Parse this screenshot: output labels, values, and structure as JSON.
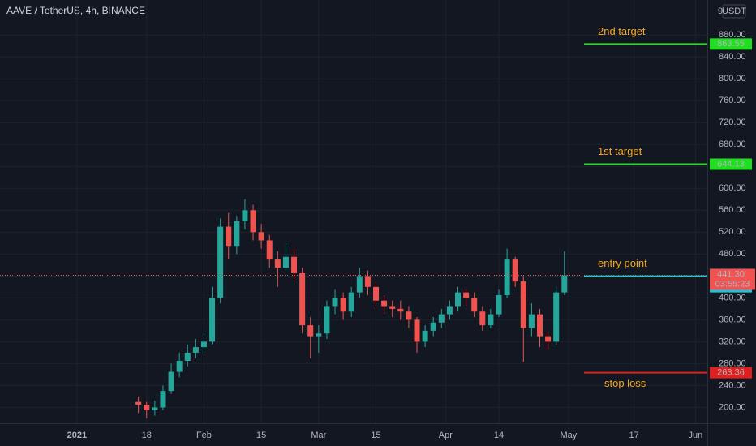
{
  "header": {
    "title": "AAVE / TetherUS, 4h, BINANCE"
  },
  "axis_top": {
    "number": "9",
    "unit": "USDT"
  },
  "chart_data": {
    "type": "candlestick",
    "x": [
      15,
      17,
      19,
      21,
      23,
      25,
      27,
      29,
      31,
      33,
      35,
      37,
      39,
      41,
      43,
      45,
      47,
      49,
      51,
      53,
      55,
      57,
      59,
      61,
      63,
      65,
      67,
      69,
      71,
      73,
      75,
      77,
      79,
      81,
      83,
      85,
      87,
      89,
      91,
      93,
      95,
      97,
      99,
      101,
      103,
      105,
      107,
      109,
      111,
      113,
      115,
      117,
      119
    ],
    "open": [
      210,
      205,
      195,
      200,
      230,
      265,
      285,
      300,
      310,
      320,
      400,
      530,
      495,
      540,
      560,
      520,
      505,
      470,
      455,
      475,
      445,
      350,
      330,
      335,
      385,
      400,
      375,
      410,
      440,
      420,
      395,
      385,
      380,
      375,
      360,
      320,
      340,
      355,
      370,
      385,
      410,
      400,
      375,
      350,
      370,
      405,
      470,
      430,
      345,
      370,
      330,
      320,
      410
    ],
    "high": [
      220,
      210,
      212,
      240,
      280,
      300,
      315,
      325,
      335,
      420,
      545,
      555,
      550,
      580,
      570,
      535,
      515,
      485,
      500,
      490,
      455,
      365,
      350,
      395,
      415,
      410,
      420,
      455,
      450,
      430,
      405,
      395,
      395,
      385,
      365,
      350,
      365,
      380,
      395,
      420,
      415,
      410,
      385,
      380,
      415,
      490,
      475,
      440,
      390,
      380,
      340,
      420,
      485
    ],
    "low": [
      190,
      180,
      185,
      195,
      225,
      255,
      275,
      290,
      300,
      315,
      390,
      470,
      480,
      525,
      505,
      490,
      455,
      420,
      445,
      430,
      335,
      290,
      300,
      325,
      370,
      360,
      365,
      400,
      405,
      385,
      370,
      365,
      360,
      345,
      300,
      310,
      330,
      345,
      360,
      375,
      385,
      365,
      340,
      345,
      365,
      400,
      420,
      283,
      330,
      310,
      305,
      315,
      405
    ],
    "close": [
      205,
      195,
      200,
      230,
      265,
      285,
      300,
      310,
      320,
      400,
      530,
      495,
      540,
      560,
      520,
      505,
      470,
      455,
      475,
      445,
      350,
      330,
      335,
      385,
      400,
      375,
      410,
      440,
      420,
      395,
      385,
      380,
      375,
      360,
      320,
      340,
      355,
      370,
      385,
      410,
      400,
      375,
      350,
      370,
      405,
      470,
      430,
      345,
      370,
      330,
      320,
      410,
      441.3
    ],
    "up_color": "#26a69a",
    "down_color": "#ef5350",
    "xlim": [
      -18.8,
      153.9
    ],
    "xticks": [
      {
        "value": 0,
        "label": "2021"
      },
      {
        "value": 17,
        "label": "18"
      },
      {
        "value": 31,
        "label": "Feb"
      },
      {
        "value": 45,
        "label": "15"
      },
      {
        "value": 59,
        "label": "Mar"
      },
      {
        "value": 73,
        "label": "15"
      },
      {
        "value": 90,
        "label": "Apr"
      },
      {
        "value": 103,
        "label": "14"
      },
      {
        "value": 120,
        "label": "May"
      },
      {
        "value": 136,
        "label": "17"
      },
      {
        "value": 151,
        "label": "Jun"
      }
    ],
    "ylim": [
      171,
      944
    ],
    "yticks": [
      {
        "value": 200,
        "label": "200.00"
      },
      {
        "value": 240,
        "label": "240.00"
      },
      {
        "value": 280,
        "label": "280.00"
      },
      {
        "value": 320,
        "label": "320.00"
      },
      {
        "value": 360,
        "label": "360.00"
      },
      {
        "value": 400,
        "label": "400.00"
      },
      {
        "value": 440,
        "label": "440.00"
      },
      {
        "value": 480,
        "label": "480.00"
      },
      {
        "value": 520,
        "label": "520.00"
      },
      {
        "value": 560,
        "label": "560.00"
      },
      {
        "value": 600,
        "label": "600.00"
      },
      {
        "value": 640,
        "label": "640.00"
      },
      {
        "value": 680,
        "label": "680.00"
      },
      {
        "value": 720,
        "label": "720.00"
      },
      {
        "value": 760,
        "label": "760.00"
      },
      {
        "value": 800,
        "label": "800.00"
      },
      {
        "value": 840,
        "label": "840.00"
      },
      {
        "value": 880,
        "label": "880.00"
      }
    ],
    "grid": true,
    "levels": [
      {
        "name": "2nd target",
        "value": 863.55,
        "color": "#1ee01e"
      },
      {
        "name": "1st target",
        "value": 644.13,
        "color": "#1ee01e"
      },
      {
        "name": "entry point",
        "value": 439.54,
        "color": "#22c1d6"
      },
      {
        "name": "stop loss",
        "value": 263.36,
        "color": "#e01f1f"
      }
    ],
    "current_price": {
      "value": 441.3,
      "label": "441.30",
      "countdown": "03:55:23",
      "color": "#f05350"
    }
  }
}
